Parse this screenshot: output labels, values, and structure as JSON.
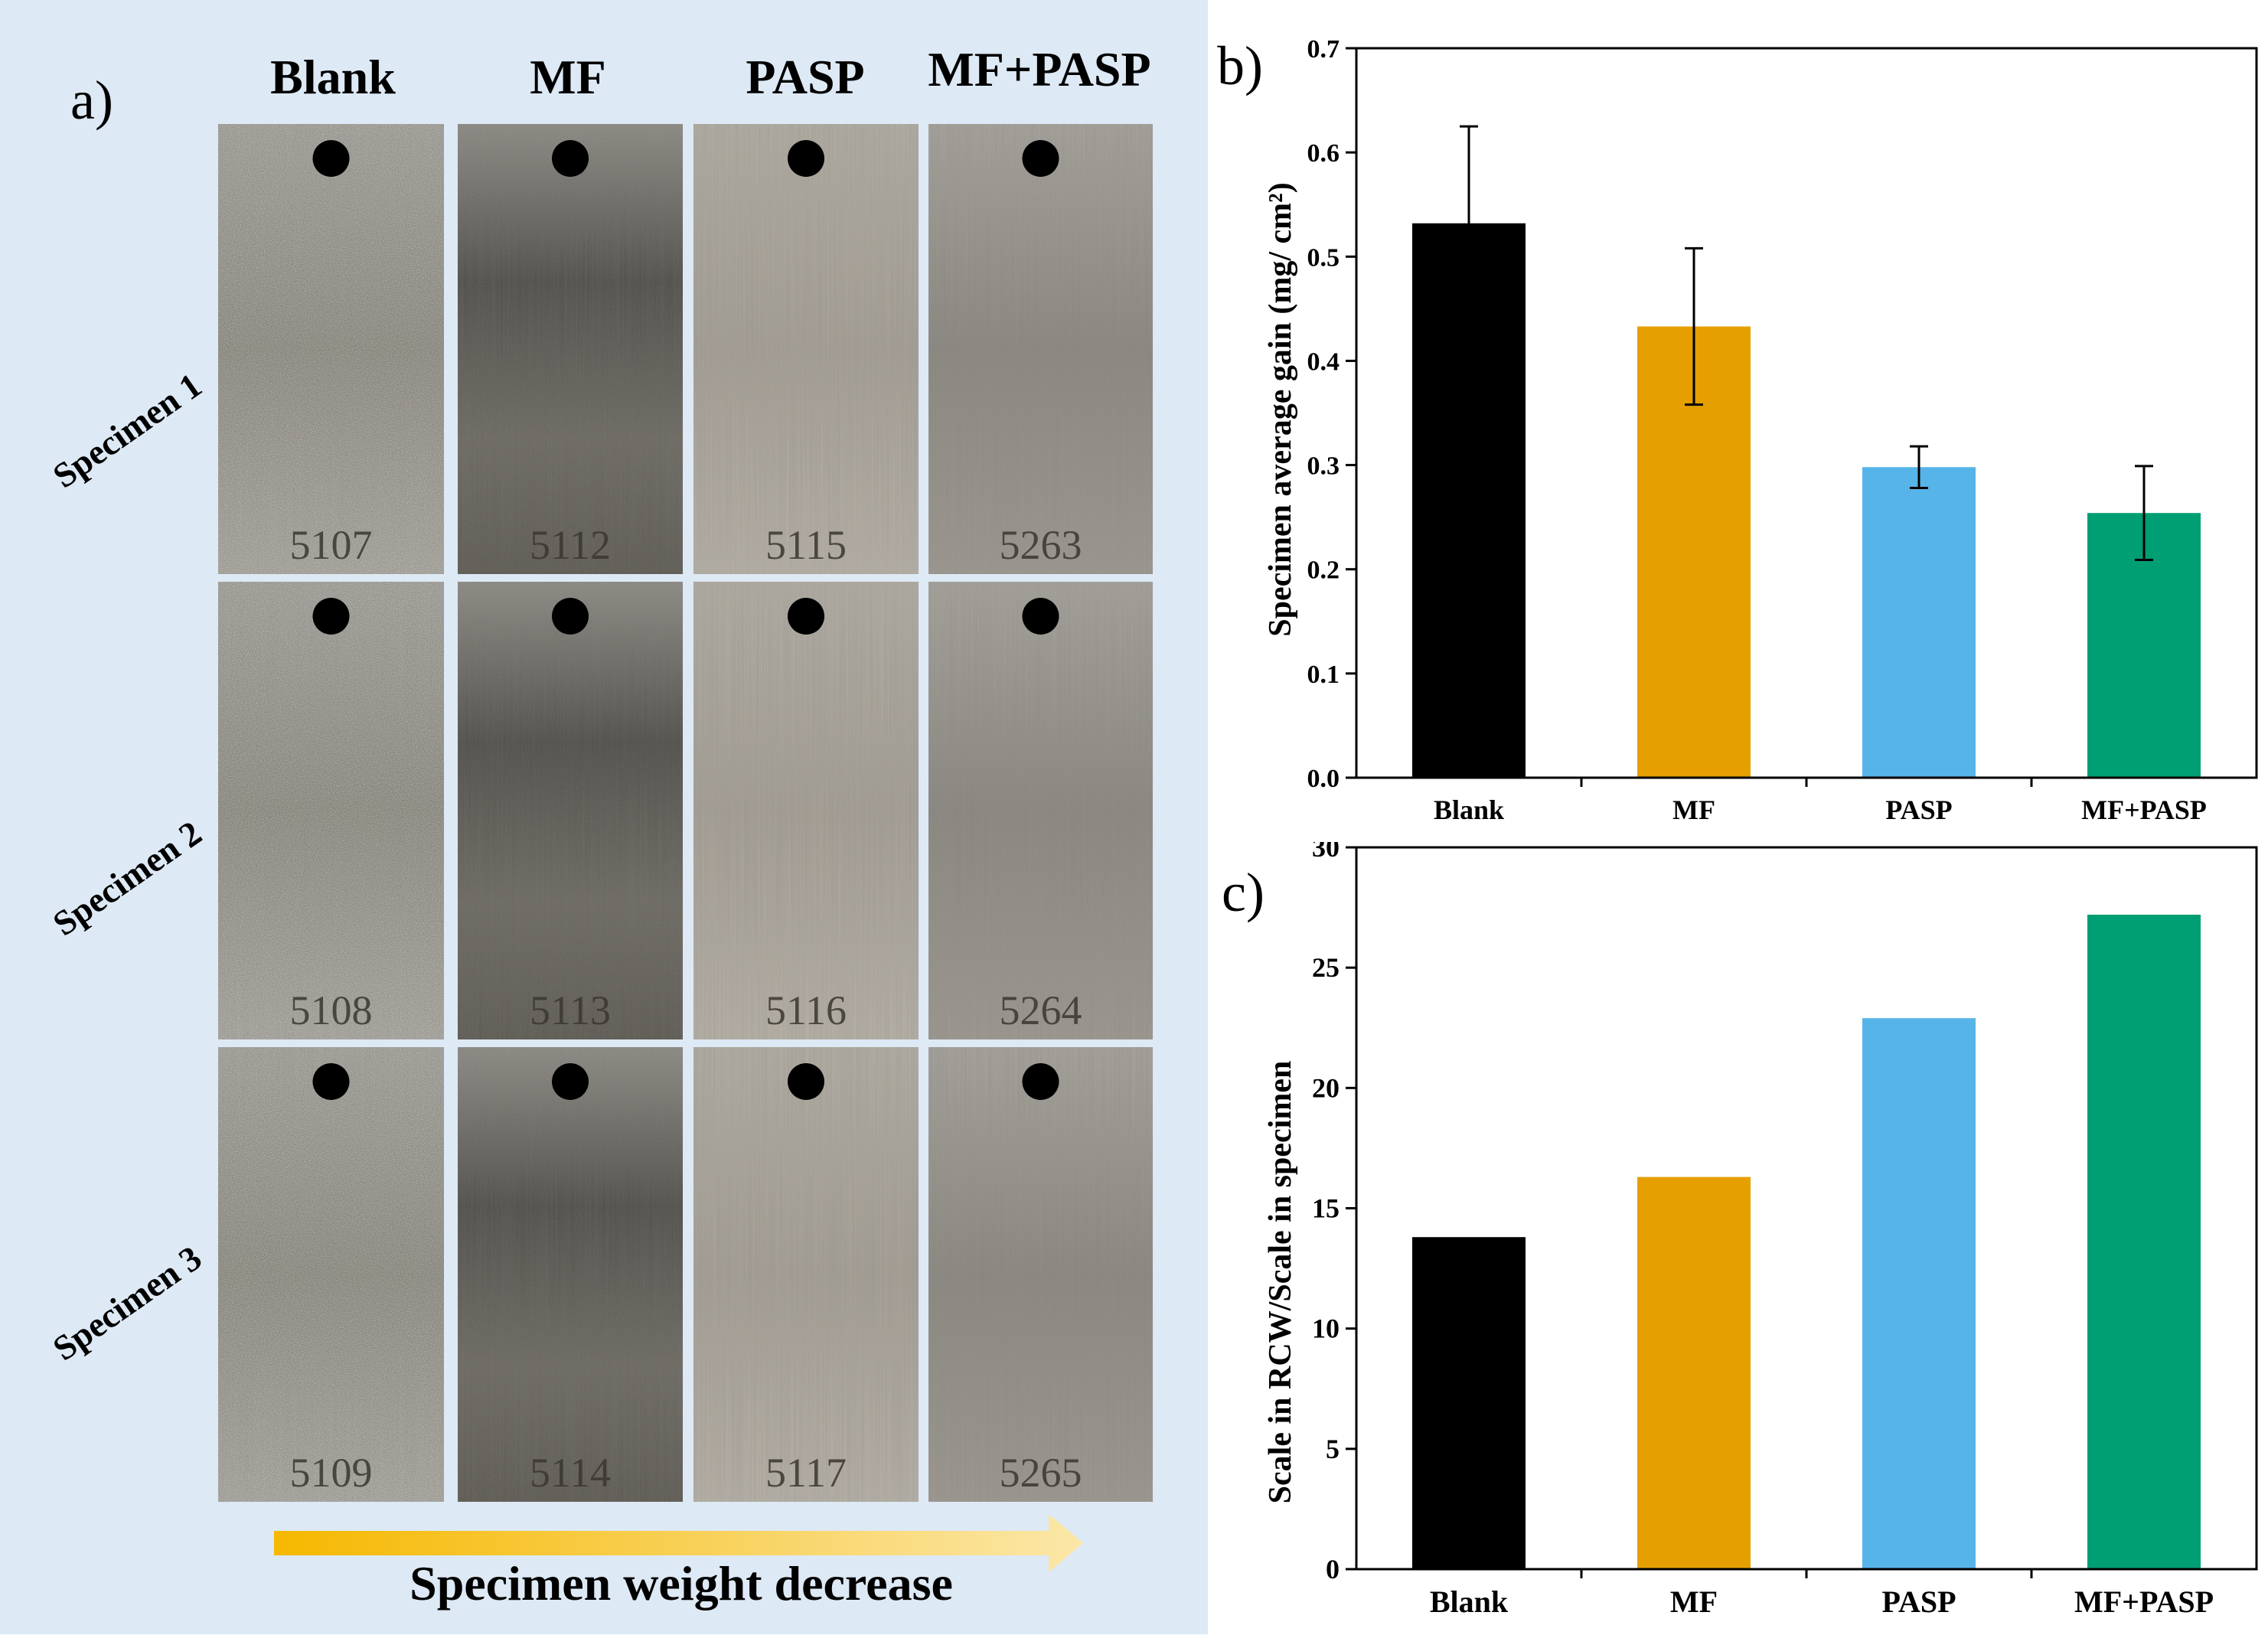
{
  "panel_a": {
    "label": "a)",
    "column_headers": [
      "Blank",
      "MF",
      "PASP",
      "MF+PASP"
    ],
    "row_labels": [
      "Specimen 1",
      "Specimen 2",
      "Specimen 3"
    ],
    "specimen_ids": [
      [
        "5107",
        "5112",
        "5115",
        "5263"
      ],
      [
        "5108",
        "5113",
        "5116",
        "5264"
      ],
      [
        "5109",
        "5114",
        "5117",
        "5265"
      ]
    ],
    "arrow_caption": "Specimen weight decrease",
    "colors": {
      "background": "#dde9f4",
      "arrow_start": "#f6b800",
      "arrow_end": "#fbe7a8"
    }
  },
  "chart_data": [
    {
      "panel_label": "b)",
      "type": "bar",
      "categories": [
        "Blank",
        "MF",
        "PASP",
        "MF+PASP"
      ],
      "values": [
        0.532,
        0.433,
        0.298,
        0.254
      ],
      "error": [
        0.093,
        0.075,
        0.02,
        0.045
      ],
      "title": "",
      "xlabel": "",
      "ylabel": "Specimen average gain (mg/ cm²)",
      "ylim": [
        0,
        0.7
      ],
      "yticks": [
        0.0,
        0.1,
        0.2,
        0.3,
        0.4,
        0.5,
        0.6,
        0.7
      ],
      "ytick_labels": [
        "0.0",
        "0.1",
        "0.2",
        "0.3",
        "0.4",
        "0.5",
        "0.6",
        "0.7"
      ],
      "colors": [
        "#000000",
        "#e69f00",
        "#56b4e9",
        "#009e73"
      ]
    },
    {
      "panel_label": "c)",
      "type": "bar",
      "categories": [
        "Blank",
        "MF",
        "PASP",
        "MF+PASP"
      ],
      "values": [
        13.8,
        16.3,
        22.9,
        27.2
      ],
      "title": "",
      "xlabel": "",
      "ylabel": "Scale in RCW/Scale in specimen",
      "ylim": [
        0,
        30
      ],
      "yticks": [
        0,
        5,
        10,
        15,
        20,
        25,
        30
      ],
      "ytick_labels": [
        "0",
        "5",
        "10",
        "15",
        "20",
        "25",
        "30"
      ],
      "colors": [
        "#000000",
        "#e69f00",
        "#56b4e9",
        "#009e73"
      ]
    }
  ]
}
